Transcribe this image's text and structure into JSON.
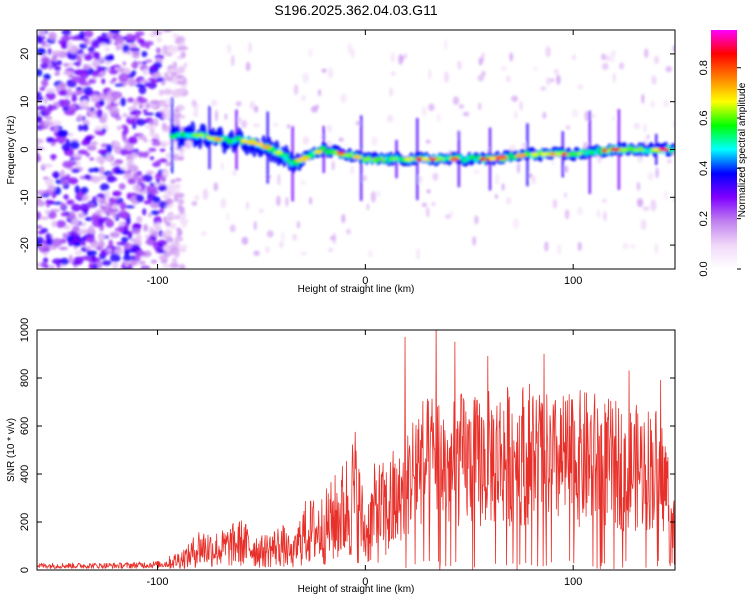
{
  "title": "S196.2025.362.04.03.G11",
  "chart_data": [
    {
      "type": "heatmap",
      "title": "S196.2025.362.04.03.G11",
      "xlabel": "Height of straight line (km)",
      "ylabel": "Frequency (Hz)",
      "xlim": [
        -158,
        149
      ],
      "ylim": [
        -25,
        25
      ],
      "xticks": [
        -100,
        0,
        100
      ],
      "xtick_labels": [
        "-100",
        "0",
        "100"
      ],
      "yticks": [
        -20,
        -10,
        0,
        10,
        20
      ],
      "ytick_labels": [
        "-20",
        "-10",
        "0",
        "10",
        "20"
      ],
      "colorbar": {
        "label": "Normalized spectral amplitude",
        "range": [
          0.0,
          0.95
        ],
        "ticks": [
          0.0,
          0.2,
          0.4,
          0.6,
          0.8
        ],
        "tick_labels": [
          "0.0",
          "0.2",
          "0.4",
          "0.6",
          "0.8"
        ],
        "colormap": [
          "#ffffff",
          "#f0d8f8",
          "#c080f0",
          "#8000ff",
          "#0000ff",
          "#00ffff",
          "#00ff00",
          "#ffff00",
          "#ff8000",
          "#ff0000",
          "#ff00ff"
        ]
      },
      "ridge": {
        "description_points_x": [
          -93,
          -80,
          -70,
          -60,
          -50,
          -40,
          -35,
          -30,
          -20,
          -10,
          0,
          20,
          40,
          60,
          80,
          100,
          120,
          140,
          149
        ],
        "frequency_hz": [
          3,
          3,
          2,
          2,
          1,
          -1,
          -3,
          -2,
          0,
          -1,
          -2,
          -2,
          -2,
          -2,
          -1,
          -1,
          0,
          0,
          0
        ]
      },
      "regions": [
        {
          "name": "noise",
          "x_range": [
            -158,
            -93
          ],
          "f_range": [
            -25,
            25
          ]
        },
        {
          "name": "signal",
          "x_range": [
            -93,
            149
          ],
          "f_range": [
            -4,
            4
          ]
        }
      ]
    },
    {
      "type": "line",
      "xlabel": "Height of straight line (km)",
      "ylabel": "SNR (10 * v/v)",
      "xlim": [
        -158,
        149
      ],
      "ylim": [
        0,
        1000
      ],
      "xticks": [
        -100,
        0,
        100
      ],
      "xtick_labels": [
        "-100",
        "0",
        "100"
      ],
      "yticks": [
        0,
        200,
        400,
        600,
        800,
        1000
      ],
      "ytick_labels": [
        "0",
        "200",
        "400",
        "600",
        "800",
        "1000"
      ],
      "color": "#e8302a",
      "envelope": {
        "x": [
          -158,
          -140,
          -120,
          -100,
          -95,
          -85,
          -80,
          -70,
          -60,
          -50,
          -40,
          -35,
          -30,
          -20,
          -10,
          -5,
          0,
          5,
          10,
          15,
          20,
          25,
          30,
          35,
          40,
          45,
          50,
          60,
          70,
          80,
          90,
          100,
          110,
          120,
          130,
          140,
          145,
          149
        ],
        "y": [
          20,
          20,
          20,
          25,
          30,
          60,
          100,
          90,
          120,
          80,
          110,
          60,
          160,
          180,
          260,
          340,
          150,
          260,
          250,
          300,
          380,
          490,
          480,
          520,
          440,
          500,
          480,
          500,
          520,
          530,
          480,
          500,
          500,
          470,
          460,
          460,
          380,
          200
        ]
      },
      "peaks": [
        {
          "x": 19,
          "y": 970
        },
        {
          "x": 34,
          "y": 1050
        },
        {
          "x": 43,
          "y": 950
        },
        {
          "x": 59,
          "y": 890
        },
        {
          "x": 86,
          "y": 900
        },
        {
          "x": 127,
          "y": 830
        },
        {
          "x": 142,
          "y": 790
        }
      ]
    }
  ]
}
